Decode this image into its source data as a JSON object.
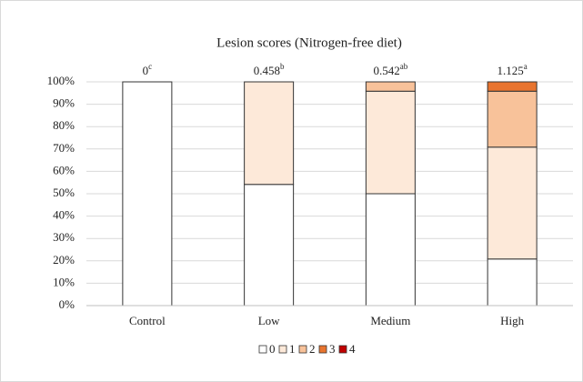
{
  "chart_data": {
    "type": "stacked_bar",
    "title": "Lesion scores (Nitrogen-free diet)",
    "categories": [
      "Control",
      "Low",
      "Medium",
      "High"
    ],
    "series": [
      {
        "name": "0",
        "color": "#ffffff",
        "values": [
          100,
          54.17,
          50,
          20.83
        ]
      },
      {
        "name": "1",
        "color": "#fde9d9",
        "values": [
          0,
          45.83,
          45.83,
          50
        ]
      },
      {
        "name": "2",
        "color": "#f8c29a",
        "values": [
          0,
          0,
          4.17,
          25
        ]
      },
      {
        "name": "3",
        "color": "#e8742f",
        "values": [
          0,
          0,
          0,
          4.17
        ]
      },
      {
        "name": "4",
        "color": "#c00000",
        "values": [
          0,
          0,
          0,
          0
        ]
      }
    ],
    "means": [
      0,
      0.458,
      0.542,
      1.125
    ],
    "mean_letters": [
      "c",
      "b",
      "ab",
      "a"
    ],
    "ylim": [
      0,
      100
    ],
    "yticks": [
      {
        "value": 0,
        "label": "0%"
      },
      {
        "value": 10,
        "label": "10%"
      },
      {
        "value": 20,
        "label": "20%"
      },
      {
        "value": 30,
        "label": "30%"
      },
      {
        "value": 40,
        "label": "40%"
      },
      {
        "value": 50,
        "label": "50%"
      },
      {
        "value": 60,
        "label": "60%"
      },
      {
        "value": 70,
        "label": "70%"
      },
      {
        "value": 80,
        "label": "80%"
      },
      {
        "value": 90,
        "label": "90%"
      },
      {
        "value": 100,
        "label": "100%"
      }
    ],
    "grid": true,
    "legend": "bottom"
  }
}
